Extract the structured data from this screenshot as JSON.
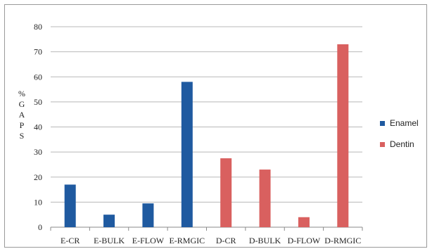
{
  "chart_data": {
    "type": "bar",
    "categories": [
      "E-CR",
      "E-BULK",
      "E-FLOW",
      "E-RMGIC",
      "D-CR",
      "D-BULK",
      "D-FLOW",
      "D-RMGIC"
    ],
    "series": [
      {
        "name": "Enamel",
        "color": "#1f5aa0",
        "values": [
          17,
          5,
          9.5,
          58,
          null,
          null,
          null,
          null
        ]
      },
      {
        "name": "Dentin",
        "color": "#d9605f",
        "values": [
          null,
          null,
          null,
          null,
          27.5,
          23,
          4,
          73
        ]
      }
    ],
    "ylabel_letters": [
      "%",
      "G",
      "A",
      "P",
      "S"
    ],
    "ylim": [
      0,
      80
    ],
    "yticks": [
      "0",
      "10",
      "20",
      "30",
      "40",
      "50",
      "60",
      "70",
      "80"
    ],
    "grid": true,
    "legend_position": "right"
  }
}
